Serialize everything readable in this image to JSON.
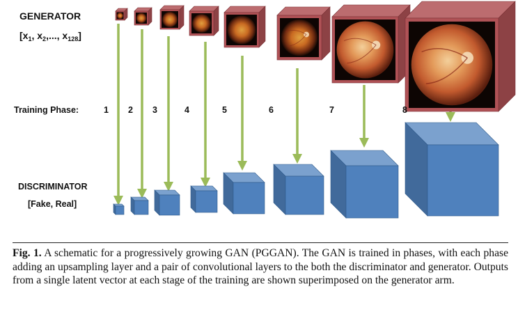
{
  "labels": {
    "generator": "GENERATOR",
    "latent_open": "[x",
    "latent_sub1": "1",
    "latent_sep1": ", x",
    "latent_sub2": "2",
    "latent_dots": ",..., x",
    "latent_sub3": "128",
    "latent_close": "]",
    "training_phase": "Training Phase:",
    "discriminator": "DISCRIMINATOR",
    "disc_output": "[Fake, Real]"
  },
  "phases": [
    "1",
    "2",
    "3",
    "4",
    "5",
    "6",
    "7",
    "8"
  ],
  "caption": {
    "fig_label": "Fig. 1.",
    "text": " A schematic for a progressively growing GAN (PGGAN). The GAN is trained in phases, with each phase adding an upsampling layer and a pair of convolutional layers to the both the discriminator and generator. Outputs from a single latent vector at each stage of the training are shown superimposed on the generator arm."
  },
  "colors": {
    "generator_cube": "#b05256",
    "discriminator_cube": "#4f81bd",
    "arrow": "#9bbb59"
  }
}
